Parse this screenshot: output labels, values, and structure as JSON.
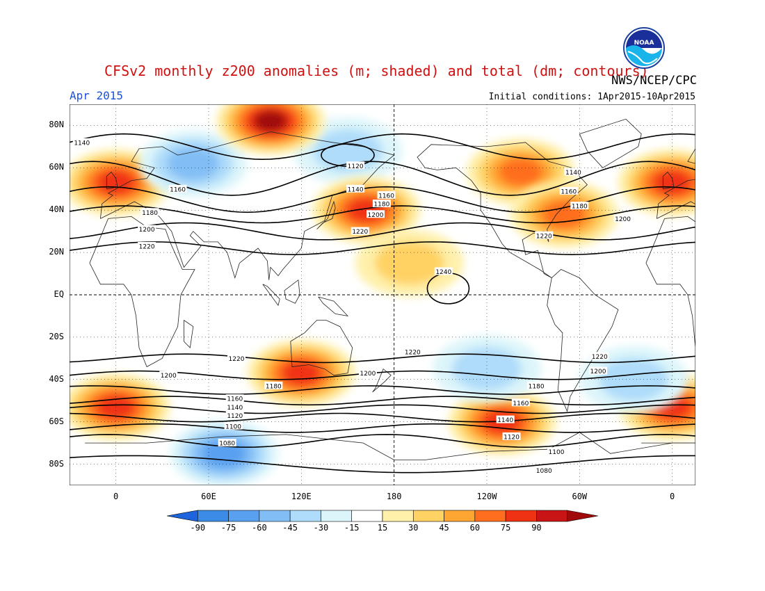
{
  "header": {
    "title": "CFSv2 monthly z200 anomalies (m; shaded) and total (dm; contours)",
    "agency": "NWS/NCEP/CPC",
    "month": "Apr 2015",
    "initial_conditions": "Initial conditions: 1Apr2015-10Apr2015",
    "logo_text": "NOAA"
  },
  "map": {
    "lat_labels": [
      {
        "text": "80N",
        "lat": 80
      },
      {
        "text": "60N",
        "lat": 60
      },
      {
        "text": "40N",
        "lat": 40
      },
      {
        "text": "20N",
        "lat": 20
      },
      {
        "text": "EQ",
        "lat": 0
      },
      {
        "text": "20S",
        "lat": -20
      },
      {
        "text": "40S",
        "lat": -40
      },
      {
        "text": "60S",
        "lat": -60
      },
      {
        "text": "80S",
        "lat": -80
      }
    ],
    "lon_labels": [
      {
        "text": "0",
        "lon": 0
      },
      {
        "text": "60E",
        "lon": 60
      },
      {
        "text": "120E",
        "lon": 120
      },
      {
        "text": "180",
        "lon": 180
      },
      {
        "text": "120W",
        "lon": 240
      },
      {
        "text": "60W",
        "lon": 300
      },
      {
        "text": "0",
        "lon": 360
      }
    ],
    "lon_range": [
      -30,
      375
    ],
    "lat_range": [
      -90,
      90
    ],
    "anomaly_centers": [
      {
        "lon": 0,
        "lat": 53,
        "value": 75
      },
      {
        "lon": 360,
        "lat": 53,
        "value": 75
      },
      {
        "lon": 50,
        "lat": 62,
        "value": -45
      },
      {
        "lon": 150,
        "lat": 68,
        "value": -30
      },
      {
        "lon": 100,
        "lat": 82,
        "value": 90
      },
      {
        "lon": 162,
        "lat": 40,
        "value": 75
      },
      {
        "lon": 262,
        "lat": 58,
        "value": 60
      },
      {
        "lon": 290,
        "lat": 38,
        "value": 60
      },
      {
        "lon": 190,
        "lat": 15,
        "value": 30
      },
      {
        "lon": 0,
        "lat": -53,
        "value": 75
      },
      {
        "lon": 360,
        "lat": -53,
        "value": 75
      },
      {
        "lon": 120,
        "lat": -37,
        "value": 75
      },
      {
        "lon": 250,
        "lat": -60,
        "value": 75
      },
      {
        "lon": 70,
        "lat": -75,
        "value": -60
      },
      {
        "lon": 335,
        "lat": -40,
        "value": -30
      },
      {
        "lon": 240,
        "lat": -35,
        "value": -30
      }
    ],
    "contour_labels": [
      {
        "text": "1140",
        "lon": -22,
        "lat": 72
      },
      {
        "text": "1160",
        "lon": 40,
        "lat": 50
      },
      {
        "text": "1180",
        "lon": 22,
        "lat": 39
      },
      {
        "text": "1200",
        "lon": 20,
        "lat": 31
      },
      {
        "text": "1220",
        "lon": 20,
        "lat": 23
      },
      {
        "text": "1120",
        "lon": 155,
        "lat": 61
      },
      {
        "text": "1140",
        "lon": 155,
        "lat": 50
      },
      {
        "text": "1160",
        "lon": 175,
        "lat": 47
      },
      {
        "text": "1180",
        "lon": 172,
        "lat": 43
      },
      {
        "text": "1200",
        "lon": 168,
        "lat": 38
      },
      {
        "text": "1220",
        "lon": 158,
        "lat": 30
      },
      {
        "text": "1240",
        "lon": 212,
        "lat": 11
      },
      {
        "text": "1140",
        "lon": 296,
        "lat": 58
      },
      {
        "text": "1160",
        "lon": 293,
        "lat": 49
      },
      {
        "text": "1180",
        "lon": 300,
        "lat": 42
      },
      {
        "text": "1200",
        "lon": 328,
        "lat": 36
      },
      {
        "text": "1220",
        "lon": 277,
        "lat": 28
      },
      {
        "text": "1220",
        "lon": 78,
        "lat": -30
      },
      {
        "text": "1200",
        "lon": 34,
        "lat": -38
      },
      {
        "text": "1180",
        "lon": 102,
        "lat": -43
      },
      {
        "text": "1160",
        "lon": 77,
        "lat": -49
      },
      {
        "text": "1140",
        "lon": 77,
        "lat": -53
      },
      {
        "text": "1120",
        "lon": 77,
        "lat": -57
      },
      {
        "text": "1100",
        "lon": 76,
        "lat": -62
      },
      {
        "text": "1080",
        "lon": 72,
        "lat": -70
      },
      {
        "text": "1200",
        "lon": 163,
        "lat": -37
      },
      {
        "text": "1220",
        "lon": 192,
        "lat": -27
      },
      {
        "text": "1220",
        "lon": 313,
        "lat": -29
      },
      {
        "text": "1200",
        "lon": 312,
        "lat": -36
      },
      {
        "text": "1180",
        "lon": 272,
        "lat": -43
      },
      {
        "text": "1160",
        "lon": 262,
        "lat": -51
      },
      {
        "text": "1140",
        "lon": 252,
        "lat": -59
      },
      {
        "text": "1120",
        "lon": 256,
        "lat": -67
      },
      {
        "text": "1100",
        "lon": 285,
        "lat": -74
      },
      {
        "text": "1080",
        "lon": 277,
        "lat": -83
      }
    ]
  },
  "colorbar": {
    "colors": [
      "#1e64dc",
      "#3c8ce6",
      "#5aa0f0",
      "#82bef5",
      "#afdcfa",
      "#dcf5fa",
      "#ffffff",
      "#fff0aa",
      "#ffd264",
      "#ffa532",
      "#ff6e1e",
      "#f03214",
      "#c81414",
      "#a00a0a"
    ],
    "labels": [
      "-90",
      "-75",
      "-60",
      "-45",
      "-30",
      "-15",
      "15",
      "30",
      "45",
      "60",
      "75",
      "90"
    ]
  }
}
